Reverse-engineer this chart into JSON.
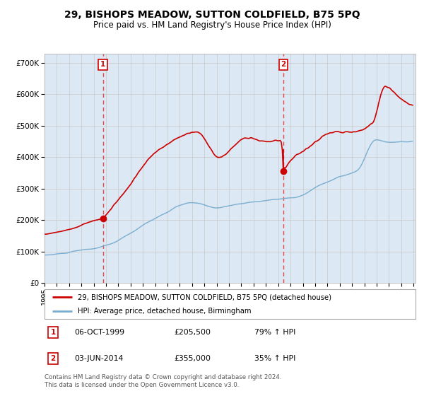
{
  "title": "29, BISHOPS MEADOW, SUTTON COLDFIELD, B75 5PQ",
  "subtitle": "Price paid vs. HM Land Registry's House Price Index (HPI)",
  "title_fontsize": 10,
  "subtitle_fontsize": 8.5,
  "background_color": "#ffffff",
  "plot_bg_color": "#dce9f5",
  "legend_label_red": "29, BISHOPS MEADOW, SUTTON COLDFIELD, B75 5PQ (detached house)",
  "legend_label_blue": "HPI: Average price, detached house, Birmingham",
  "sale1_year": 1999,
  "sale1_month": 10,
  "sale1_price": 205500,
  "sale2_year": 2014,
  "sale2_month": 6,
  "sale2_price": 355000,
  "footer": "Contains HM Land Registry data © Crown copyright and database right 2024.\nThis data is licensed under the Open Government Licence v3.0.",
  "yticks": [
    0,
    100000,
    200000,
    300000,
    400000,
    500000,
    600000,
    700000
  ],
  "red_color": "#cc0000",
  "blue_color": "#7aadcf",
  "dot_color": "#cc0000",
  "vline_color": "#ee4444",
  "grid_color": "#c8c8c8",
  "shade_color": "#dce9f5"
}
